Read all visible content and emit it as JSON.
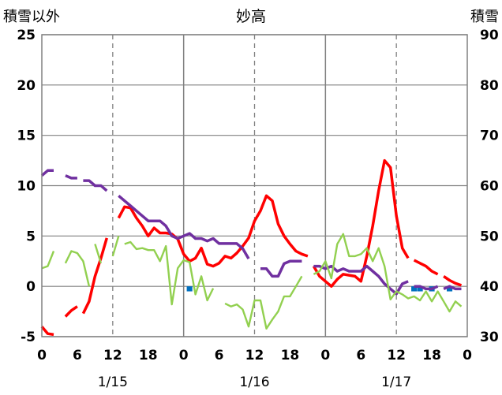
{
  "chart_data": {
    "type": "line",
    "title": "妙高",
    "y_left_title": "積雪以外",
    "y_right_title": "積雪",
    "y_left_range": [
      -5,
      25
    ],
    "y_left_ticks": [
      "-5",
      "0",
      "5",
      "10",
      "15",
      "20",
      "25"
    ],
    "y_right_range": [
      30,
      90
    ],
    "y_right_ticks": [
      "30",
      "40",
      "50",
      "60",
      "70",
      "80",
      "90"
    ],
    "x_range_hours": [
      0,
      72
    ],
    "x_tick_labels": [
      "0",
      "6",
      "12",
      "18",
      "0",
      "6",
      "12",
      "18",
      "0",
      "6",
      "12",
      "18",
      "0"
    ],
    "x_date_labels": [
      {
        "hour": 12,
        "label": "1/15"
      },
      {
        "hour": 36,
        "label": "1/16"
      },
      {
        "hour": 60,
        "label": "1/17"
      }
    ],
    "day_boundaries": [
      24,
      48
    ],
    "noon_lines": [
      12,
      36,
      60
    ],
    "colors": {
      "temperature": "#ff0000",
      "snow_depth": "#7030a0",
      "wind": "#92d050",
      "precipitation": "#0070c0",
      "grid": "#808080",
      "frame": "#808080"
    },
    "series": [
      {
        "name": "temperature",
        "axis": "left",
        "segments": [
          [
            [
              0,
              -4.0
            ],
            [
              1,
              -4.7
            ],
            [
              2,
              -4.8
            ]
          ],
          [
            [
              4,
              -3.0
            ],
            [
              5,
              -2.4
            ],
            [
              6,
              -2.0
            ]
          ],
          [
            [
              7,
              -2.7
            ],
            [
              8,
              -1.5
            ],
            [
              9,
              1.0
            ],
            [
              10,
              2.8
            ],
            [
              11,
              4.8
            ]
          ],
          [
            [
              13,
              6.8
            ],
            [
              14,
              7.9
            ],
            [
              15,
              7.8
            ],
            [
              16,
              6.8
            ],
            [
              17,
              6.0
            ],
            [
              18,
              5.0
            ],
            [
              19,
              5.8
            ],
            [
              20,
              5.3
            ],
            [
              21,
              5.3
            ],
            [
              22,
              5.2
            ],
            [
              23,
              4.7
            ],
            [
              24,
              3.2
            ],
            [
              25,
              2.5
            ],
            [
              26,
              2.8
            ],
            [
              27,
              3.8
            ],
            [
              28,
              2.2
            ],
            [
              29,
              2.0
            ],
            [
              30,
              2.3
            ],
            [
              31,
              3.0
            ],
            [
              32,
              2.8
            ],
            [
              33,
              3.3
            ],
            [
              34,
              4.0
            ],
            [
              35,
              4.8
            ],
            [
              36,
              6.5
            ],
            [
              37,
              7.5
            ],
            [
              38,
              9.0
            ],
            [
              39,
              8.5
            ],
            [
              40,
              6.2
            ],
            [
              41,
              5.0
            ],
            [
              42,
              4.2
            ],
            [
              43,
              3.5
            ],
            [
              44,
              3.2
            ],
            [
              45,
              3.0
            ]
          ],
          [
            [
              46,
              2.0
            ],
            [
              47,
              1.0
            ],
            [
              48,
              0.5
            ],
            [
              49,
              0.0
            ],
            [
              50,
              0.7
            ],
            [
              51,
              1.2
            ],
            [
              52,
              1.1
            ],
            [
              53,
              1.0
            ],
            [
              54,
              0.5
            ],
            [
              55,
              3.0
            ],
            [
              56,
              6.0
            ],
            [
              57,
              9.5
            ],
            [
              58,
              12.5
            ],
            [
              59,
              11.8
            ],
            [
              60,
              7.0
            ],
            [
              61,
              3.8
            ],
            [
              62,
              2.8
            ]
          ],
          [
            [
              63,
              2.6
            ],
            [
              64,
              2.3
            ],
            [
              65,
              2.0
            ],
            [
              66,
              1.5
            ],
            [
              67,
              1.2
            ]
          ],
          [
            [
              68,
              1.0
            ],
            [
              69,
              0.6
            ],
            [
              70,
              0.3
            ],
            [
              71,
              0.1
            ]
          ]
        ]
      },
      {
        "name": "snow_depth",
        "axis": "right",
        "segments": [
          [
            [
              0,
              62.0
            ],
            [
              1,
              63.0
            ],
            [
              2,
              63.0
            ]
          ],
          [
            [
              4,
              62.0
            ],
            [
              5,
              61.5
            ],
            [
              6,
              61.5
            ]
          ],
          [
            [
              7,
              61.0
            ],
            [
              8,
              61.0
            ],
            [
              9,
              60.0
            ],
            [
              10,
              60.0
            ],
            [
              11,
              59.0
            ]
          ],
          [
            [
              13,
              58.0
            ],
            [
              14,
              57.0
            ],
            [
              15,
              56.0
            ],
            [
              16,
              55.0
            ],
            [
              17,
              54.0
            ],
            [
              18,
              53.0
            ],
            [
              19,
              53.0
            ],
            [
              20,
              53.0
            ],
            [
              21,
              52.0
            ],
            [
              22,
              50.0
            ],
            [
              23,
              49.5
            ],
            [
              24,
              50.0
            ],
            [
              25,
              50.5
            ],
            [
              26,
              49.5
            ],
            [
              27,
              49.5
            ],
            [
              28,
              49.0
            ],
            [
              29,
              49.5
            ],
            [
              30,
              48.5
            ],
            [
              31,
              48.5
            ],
            [
              32,
              48.5
            ],
            [
              33,
              48.5
            ],
            [
              34,
              47.5
            ],
            [
              35,
              45.5
            ]
          ],
          [
            [
              37,
              43.5
            ],
            [
              38,
              43.5
            ],
            [
              39,
              42.0
            ],
            [
              40,
              42.0
            ],
            [
              41,
              44.5
            ],
            [
              42,
              45.0
            ],
            [
              43,
              45.0
            ],
            [
              44,
              45.0
            ]
          ],
          [
            [
              46,
              44.0
            ],
            [
              47,
              44.0
            ],
            [
              48,
              43.5
            ],
            [
              49,
              44.0
            ],
            [
              50,
              43.0
            ],
            [
              51,
              43.5
            ],
            [
              52,
              43.0
            ],
            [
              53,
              43.0
            ],
            [
              54,
              43.0
            ],
            [
              55,
              44.0
            ],
            [
              56,
              43.0
            ],
            [
              57,
              42.0
            ],
            [
              58,
              40.5
            ],
            [
              59,
              39.5
            ],
            [
              60,
              38.5
            ],
            [
              61,
              40.5
            ],
            [
              62,
              41.0
            ]
          ],
          [
            [
              63,
              40.0
            ],
            [
              64,
              40.0
            ],
            [
              65,
              39.5
            ],
            [
              66,
              39.5
            ],
            [
              67,
              40.0
            ]
          ],
          [
            [
              68,
              39.5
            ],
            [
              69,
              40.0
            ],
            [
              70,
              39.5
            ],
            [
              71,
              39.5
            ]
          ]
        ]
      },
      {
        "name": "wind",
        "axis": "left",
        "segments": [
          [
            [
              0,
              1.8
            ],
            [
              1,
              2.0
            ],
            [
              2,
              3.5
            ]
          ],
          [
            [
              4,
              2.3
            ],
            [
              5,
              3.5
            ],
            [
              6,
              3.3
            ],
            [
              7,
              2.5
            ],
            [
              8,
              0.0
            ]
          ],
          [
            [
              9,
              4.2
            ],
            [
              10,
              2.3
            ]
          ],
          [
            [
              12,
              3.0
            ],
            [
              13,
              5.0
            ]
          ],
          [
            [
              14,
              4.2
            ],
            [
              15,
              4.4
            ],
            [
              16,
              3.7
            ],
            [
              17,
              3.8
            ],
            [
              18,
              3.6
            ],
            [
              19,
              3.6
            ],
            [
              20,
              2.5
            ],
            [
              21,
              4.0
            ],
            [
              22,
              -1.8
            ],
            [
              23,
              1.8
            ],
            [
              24,
              2.6
            ],
            [
              25,
              2.4
            ],
            [
              26,
              -0.8
            ],
            [
              27,
              1.0
            ],
            [
              28,
              -1.4
            ],
            [
              29,
              -0.2
            ]
          ],
          [
            [
              31,
              -1.7
            ],
            [
              32,
              -2.0
            ],
            [
              33,
              -1.8
            ],
            [
              34,
              -2.3
            ],
            [
              35,
              -4.0
            ],
            [
              36,
              -1.4
            ],
            [
              37,
              -1.4
            ],
            [
              38,
              -4.2
            ],
            [
              39,
              -3.3
            ],
            [
              40,
              -2.5
            ],
            [
              41,
              -1.0
            ],
            [
              42,
              -1.0
            ],
            [
              43,
              0.0
            ],
            [
              44,
              1.0
            ]
          ],
          [
            [
              46,
              1.2
            ],
            [
              47,
              1.5
            ],
            [
              48,
              2.5
            ],
            [
              49,
              0.8
            ],
            [
              50,
              4.2
            ],
            [
              51,
              5.2
            ],
            [
              52,
              3.0
            ],
            [
              53,
              3.0
            ],
            [
              54,
              3.2
            ],
            [
              55,
              3.8
            ],
            [
              56,
              2.5
            ],
            [
              57,
              3.8
            ],
            [
              58,
              2.0
            ],
            [
              59,
              -1.3
            ],
            [
              60,
              -0.5
            ],
            [
              61,
              -0.8
            ],
            [
              62,
              -1.2
            ],
            [
              63,
              -1.0
            ],
            [
              64,
              -1.4
            ],
            [
              65,
              -0.5
            ],
            [
              66,
              -1.5
            ],
            [
              67,
              -0.5
            ],
            [
              68,
              -1.5
            ],
            [
              69,
              -2.5
            ],
            [
              70,
              -1.5
            ],
            [
              71,
              -2.0
            ]
          ]
        ]
      },
      {
        "name": "precipitation",
        "axis": "left",
        "type": "bar",
        "points": [
          [
            25,
            -0.5
          ],
          [
            63,
            -0.5
          ],
          [
            64,
            -0.5
          ],
          [
            66,
            -0.5
          ],
          [
            69,
            -0.5
          ]
        ]
      }
    ]
  }
}
